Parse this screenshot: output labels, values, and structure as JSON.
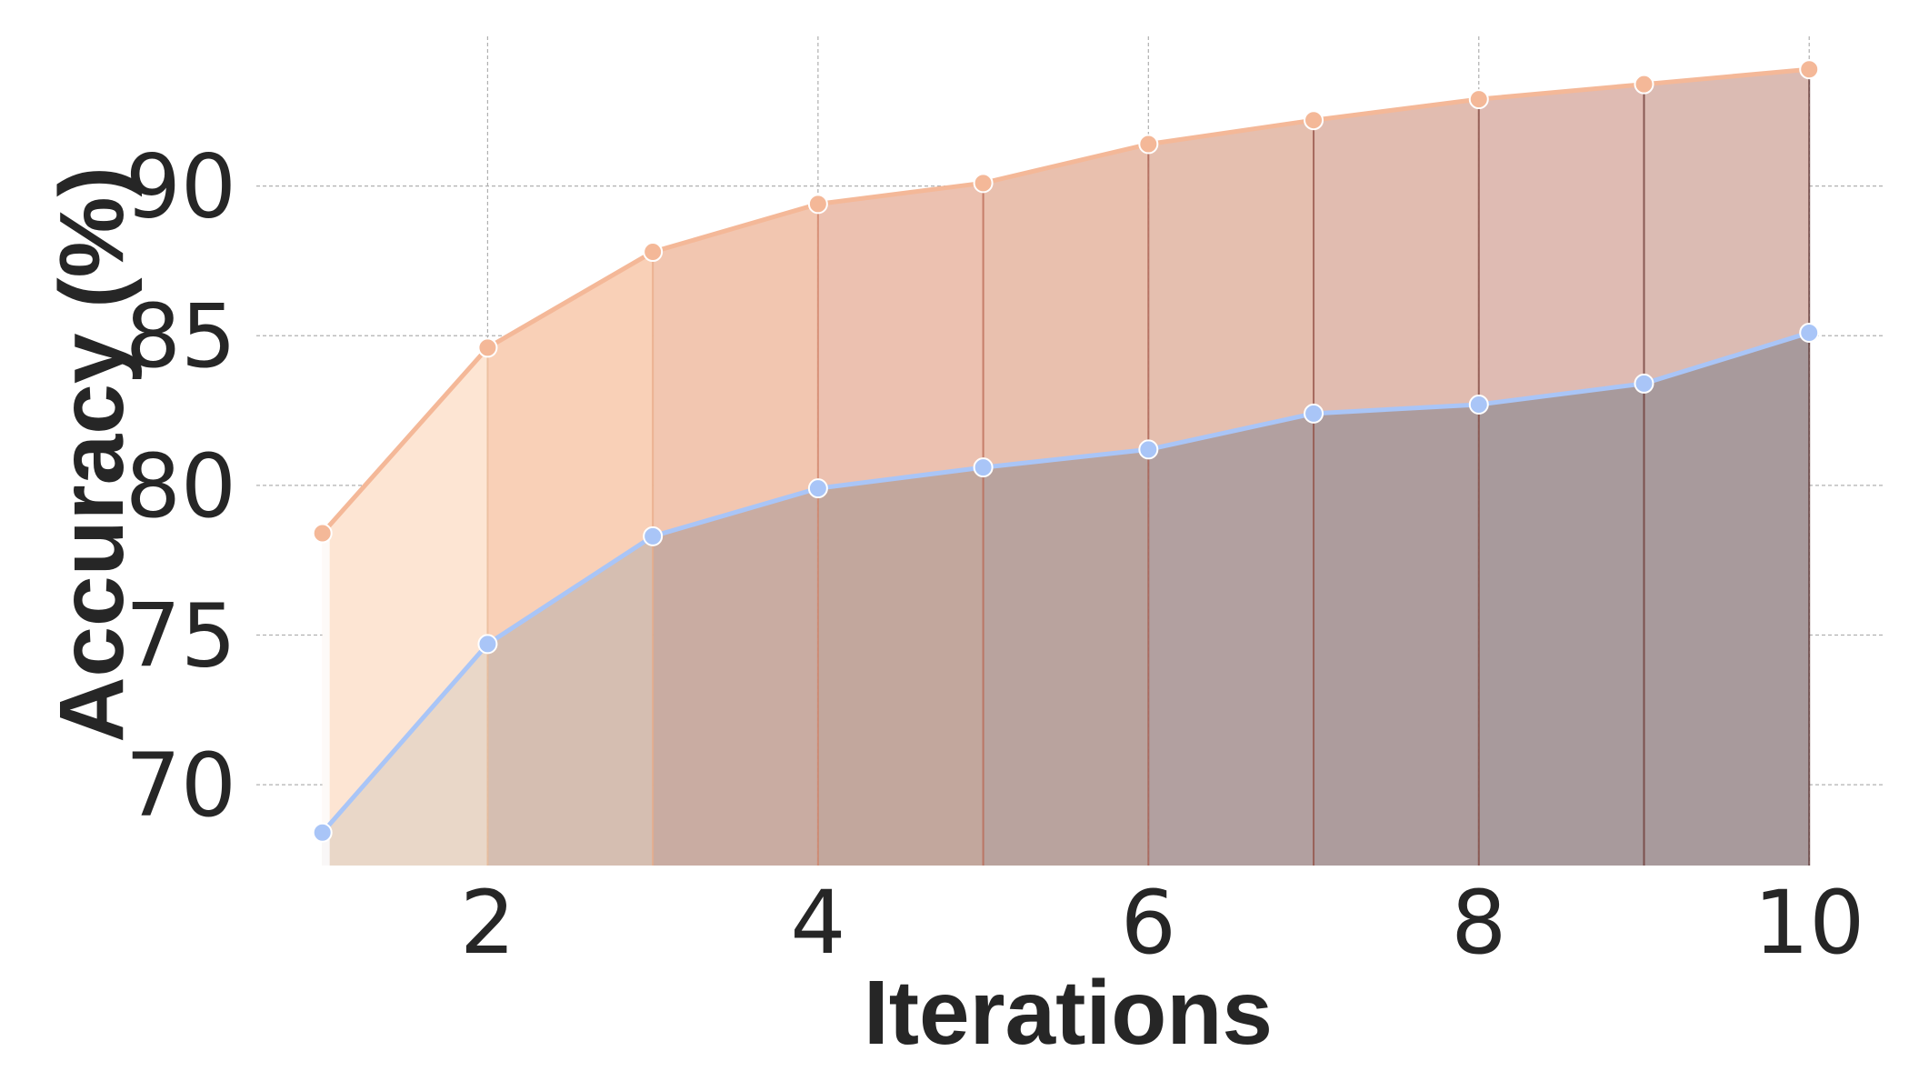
{
  "chart_data": {
    "type": "area",
    "xlabel": "Iterations",
    "ylabel": "Accuracy (%)",
    "xlim": [
      0.6,
      10.45
    ],
    "ylim": [
      67.3,
      95.0
    ],
    "x": [
      1,
      2,
      3,
      4,
      5,
      6,
      7,
      8,
      9,
      10
    ],
    "xticks": [
      2,
      4,
      6,
      8,
      10
    ],
    "yticks": [
      70,
      75,
      80,
      85,
      90
    ],
    "grid": true,
    "series": [
      {
        "color": "#f4b898",
        "values": [
          78.4,
          84.6,
          87.8,
          89.4,
          90.1,
          91.4,
          92.2,
          92.9,
          93.4,
          93.9
        ]
      },
      {
        "color": "#a9c5f7",
        "values": [
          68.4,
          74.7,
          78.3,
          79.9,
          80.6,
          81.2,
          82.4,
          82.7,
          83.4,
          85.1
        ]
      }
    ],
    "fill_colors": [
      "#fdfaf8",
      "#fde5d3",
      "#f9d0b7",
      "#f2c6b0",
      "#ecc1b0",
      "#e9c0ae",
      "#e5bfaf",
      "#e1bcb0",
      "#dfbbb3",
      "#dbbbb3"
    ],
    "lower_fill_colors": [
      "#f9f7f7",
      "#e9d7c8",
      "#d5beb1",
      "#c9aca2",
      "#c2a79d",
      "#b9a39e",
      "#b2a0a0",
      "#ad9c9d",
      "#a89a9c",
      "#a89a9c"
    ],
    "divider_colors": [
      "#f4b898",
      "#e8b896",
      "#e8a986",
      "#d08066",
      "#b96652",
      "#a6584a",
      "#904c42",
      "#7e4139",
      "#6c3733",
      "#5a2f2d"
    ]
  }
}
